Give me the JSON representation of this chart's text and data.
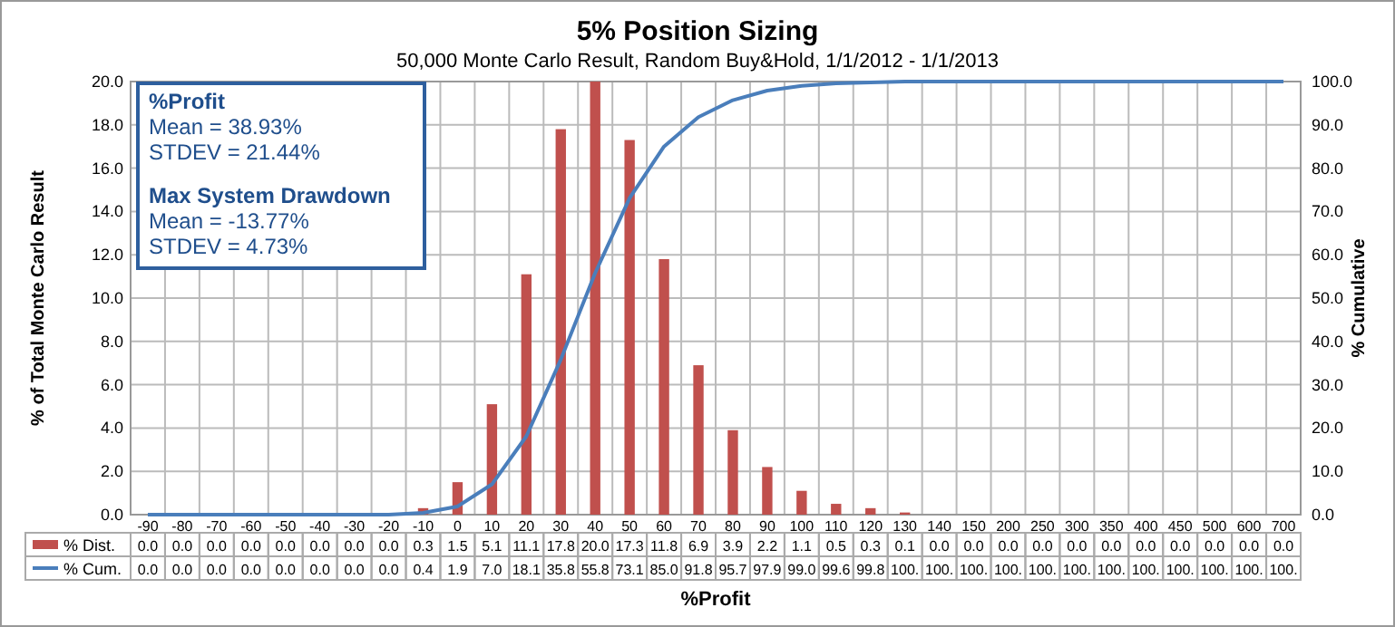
{
  "chart_data": {
    "type": "bar",
    "title": "5% Position Sizing",
    "subtitle": "50,000 Monte Carlo Result, Random Buy&Hold,  1/1/2012 - 1/1/2013",
    "xlabel": "%Profit",
    "ylabel": "% of Total Monte Carlo Result",
    "y2label": "% Cumulative",
    "categories": [
      "-90",
      "-80",
      "-70",
      "-60",
      "-50",
      "-40",
      "-30",
      "-20",
      "-10",
      "0",
      "10",
      "20",
      "30",
      "40",
      "50",
      "60",
      "70",
      "80",
      "90",
      "100",
      "110",
      "120",
      "130",
      "140",
      "150",
      "200",
      "250",
      "300",
      "350",
      "400",
      "450",
      "500",
      "600",
      "700"
    ],
    "series": [
      {
        "name": "% Dist.",
        "color": "#c0504d",
        "values": [
          0,
          0,
          0,
          0,
          0,
          0,
          0,
          0,
          0.3,
          1.5,
          5.1,
          11.1,
          17.8,
          20.0,
          17.3,
          11.8,
          6.9,
          3.9,
          2.2,
          1.1,
          0.5,
          0.3,
          0.1,
          0,
          0,
          0,
          0,
          0,
          0,
          0,
          0,
          0,
          0,
          0
        ],
        "value_labels": [
          "0.0",
          "0.0",
          "0.0",
          "0.0",
          "0.0",
          "0.0",
          "0.0",
          "0.0",
          "0.3",
          "1.5",
          "5.1",
          "11.1",
          "17.8",
          "20.0",
          "17.3",
          "11.8",
          "6.9",
          "3.9",
          "2.2",
          "1.1",
          "0.5",
          "0.3",
          "0.1",
          "0.0",
          "0.0",
          "0.0",
          "0.0",
          "0.0",
          "0.0",
          "0.0",
          "0.0",
          "0.0",
          "0.0",
          "0.0"
        ]
      },
      {
        "name": "% Cum.",
        "type": "line",
        "axis": "y2",
        "color": "#4a7ebb",
        "values": [
          0,
          0,
          0,
          0,
          0,
          0,
          0,
          0,
          0.4,
          1.9,
          7.0,
          18.1,
          35.8,
          55.8,
          73.1,
          85.0,
          91.8,
          95.7,
          97.9,
          99.0,
          99.6,
          99.8,
          100,
          100,
          100,
          100,
          100,
          100,
          100,
          100,
          100,
          100,
          100,
          100
        ],
        "value_labels": [
          "0.0",
          "0.0",
          "0.0",
          "0.0",
          "0.0",
          "0.0",
          "0.0",
          "0.0",
          "0.4",
          "1.9",
          "7.0",
          "18.1",
          "35.8",
          "55.8",
          "73.1",
          "85.0",
          "91.8",
          "95.7",
          "97.9",
          "99.0",
          "99.6",
          "99.8",
          "100.",
          "100.",
          "100.",
          "100.",
          "100.",
          "100.",
          "100.",
          "100.",
          "100.",
          "100.",
          "100.",
          "100."
        ]
      }
    ],
    "ylim": [
      0,
      20
    ],
    "yticks": [
      {
        "value": 0,
        "label": "0.0"
      },
      {
        "value": 2,
        "label": "2.0"
      },
      {
        "value": 4,
        "label": "4.0"
      },
      {
        "value": 6,
        "label": "6.0"
      },
      {
        "value": 8,
        "label": "8.0"
      },
      {
        "value": 10,
        "label": "10.0"
      },
      {
        "value": 12,
        "label": "12.0"
      },
      {
        "value": 14,
        "label": "14.0"
      },
      {
        "value": 16,
        "label": "16.0"
      },
      {
        "value": 18,
        "label": "18.0"
      },
      {
        "value": 20,
        "label": "20.0"
      }
    ],
    "y2lim": [
      0,
      100
    ],
    "y2ticks": [
      {
        "value": 0,
        "label": "0.0"
      },
      {
        "value": 10,
        "label": "10.0"
      },
      {
        "value": 20,
        "label": "20.0"
      },
      {
        "value": 30,
        "label": "30.0"
      },
      {
        "value": 40,
        "label": "40.0"
      },
      {
        "value": 50,
        "label": "50.0"
      },
      {
        "value": 60,
        "label": "60.0"
      },
      {
        "value": 70,
        "label": "70.0"
      },
      {
        "value": 80,
        "label": "80.0"
      },
      {
        "value": 90,
        "label": "90.0"
      },
      {
        "value": 100,
        "label": "100.0"
      }
    ],
    "annotations": [
      "%Profit",
      "Mean = 38.93%",
      "STDEV = 21.44%",
      "Max System Drawdown",
      "Mean = -13.77%",
      "STDEV = 4.73%"
    ],
    "data_labels": true,
    "grid": true,
    "legend": "bottom",
    "marker": "none",
    "line_style": "solid"
  }
}
